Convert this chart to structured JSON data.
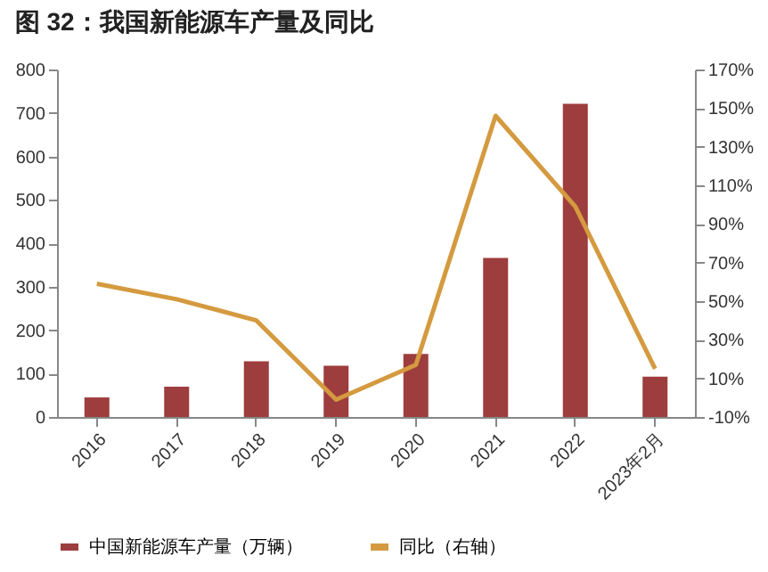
{
  "chart_data": {
    "type": "bar",
    "title": "图 32：我国新能源车产量及同比",
    "categories": [
      "2016",
      "2017",
      "2018",
      "2019",
      "2020",
      "2021",
      "2022",
      "2023年2月"
    ],
    "series": [
      {
        "name": "中国新能源车产量（万辆）",
        "color": "#9e3d3d",
        "values": [
          45,
          70,
          128,
          118,
          145,
          366,
          721,
          93
        ]
      },
      {
        "name": "同比（右轴）",
        "type": "line",
        "axis": "y2",
        "color": "#d49a3f",
        "values": [
          59,
          51,
          40,
          -1,
          17,
          146,
          99,
          15
        ]
      }
    ],
    "ylim": [
      0,
      800
    ],
    "yticks": [
      0,
      100,
      200,
      300,
      400,
      500,
      600,
      700,
      800
    ],
    "y2lim": [
      -10,
      170
    ],
    "y2ticks": [
      {
        "value": -10,
        "label": "-10%"
      },
      {
        "value": 10,
        "label": "10%"
      },
      {
        "value": 30,
        "label": "30%"
      },
      {
        "value": 50,
        "label": "50%"
      },
      {
        "value": 70,
        "label": "70%"
      },
      {
        "value": 90,
        "label": "90%"
      },
      {
        "value": 110,
        "label": "110%"
      },
      {
        "value": 130,
        "label": "130%"
      },
      {
        "value": 150,
        "label": "150%"
      },
      {
        "value": 170,
        "label": "170%"
      }
    ],
    "grid": false,
    "legend": "bottom",
    "marker": "none",
    "line_style": "solid"
  }
}
